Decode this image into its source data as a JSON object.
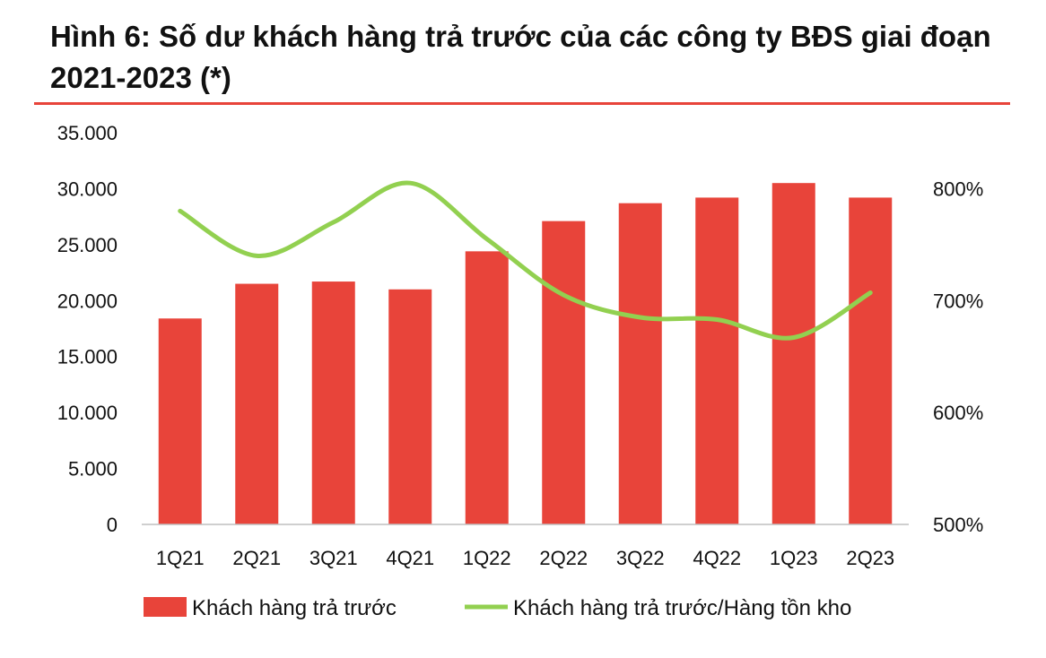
{
  "title": "Hình 6: Số dư khách hàng trả trước của các công ty BĐS giai đoạn 2021-2023 (*)",
  "chart_data": {
    "type": "bar",
    "categories": [
      "1Q21",
      "2Q21",
      "3Q21",
      "4Q21",
      "1Q22",
      "2Q22",
      "3Q22",
      "4Q22",
      "1Q23",
      "2Q23"
    ],
    "series": [
      {
        "name": "Khách hàng trả trước",
        "type": "bar",
        "axis": "left",
        "color": "#e8443a",
        "values": [
          18400,
          21500,
          21700,
          21000,
          24400,
          27100,
          28700,
          29200,
          30500,
          29200
        ]
      },
      {
        "name": "Khách hàng trả trước/Hàng tồn kho",
        "type": "line",
        "axis": "right",
        "color": "#92d050",
        "smooth": true,
        "values": [
          780,
          740,
          770,
          805,
          755,
          705,
          685,
          683,
          667,
          707
        ]
      }
    ],
    "y_left": {
      "ylim": [
        0,
        35000
      ],
      "ticks": [
        0,
        5000,
        10000,
        15000,
        20000,
        25000,
        30000,
        35000
      ],
      "tick_labels": [
        "0",
        "5.000",
        "10.000",
        "15.000",
        "20.000",
        "25.000",
        "30.000",
        "35.000"
      ]
    },
    "y_right": {
      "ylim": [
        500,
        850
      ],
      "ticks": [
        500,
        600,
        700,
        800
      ],
      "tick_labels": [
        "500%",
        "600%",
        "700%",
        "800%"
      ]
    },
    "grid": false,
    "legend_position": "bottom"
  }
}
